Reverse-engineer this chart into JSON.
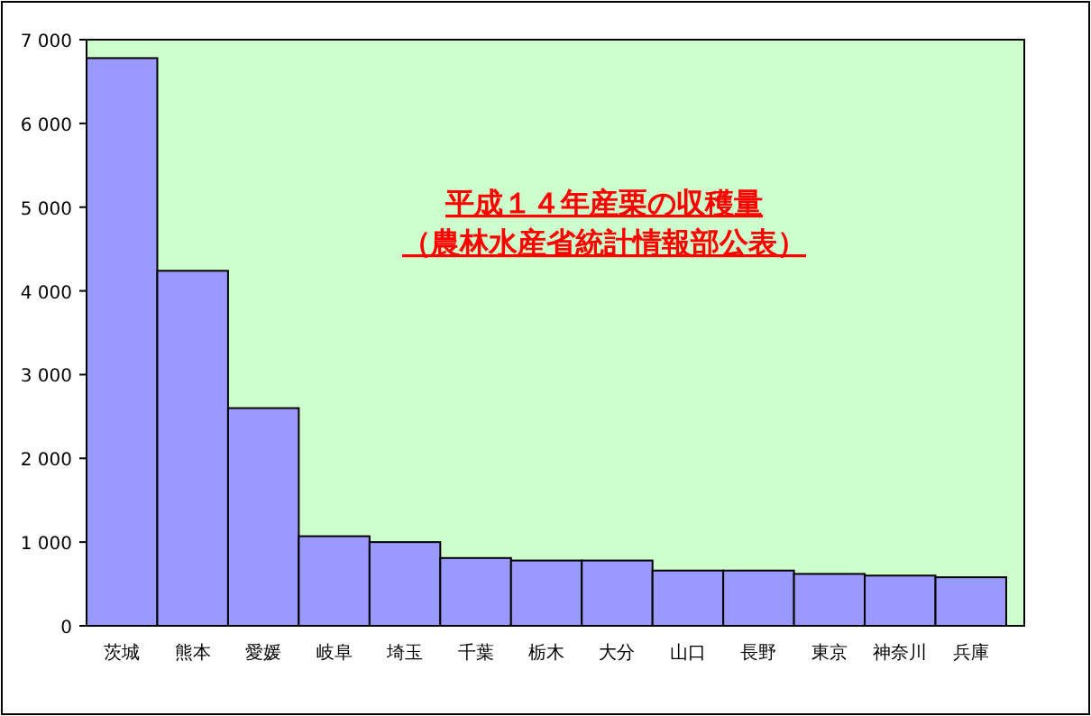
{
  "chart_data": {
    "type": "bar",
    "title": "平成１４年産栗の収穫量",
    "subtitle": "（農林水産省統計情報部公表）",
    "categories": [
      "茨城",
      "熊本",
      "愛媛",
      "岐阜",
      "埼玉",
      "千葉",
      "栃木",
      "大分",
      "山口",
      "長野",
      "東京",
      "神奈川",
      "兵庫"
    ],
    "values": [
      6780,
      4240,
      2600,
      1070,
      1000,
      810,
      780,
      780,
      660,
      660,
      620,
      600,
      580
    ],
    "color": "#9999ff",
    "ylim": [
      0,
      7000
    ],
    "yticks": [
      0,
      {
        "value": 1000,
        "label": "1 000"
      },
      {
        "value": 2000,
        "label": "2 000"
      },
      {
        "value": 3000,
        "label": "3 000"
      },
      {
        "value": 4000,
        "label": "4 000"
      },
      {
        "value": 5000,
        "label": "5 000"
      },
      {
        "value": 6000,
        "label": "6 000"
      },
      {
        "value": 7000,
        "label": "7 000"
      }
    ],
    "grid": false
  }
}
